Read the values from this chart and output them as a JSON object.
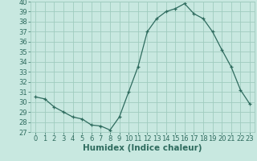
{
  "x": [
    0,
    1,
    2,
    3,
    4,
    5,
    6,
    7,
    8,
    9,
    10,
    11,
    12,
    13,
    14,
    15,
    16,
    17,
    18,
    19,
    20,
    21,
    22,
    23
  ],
  "y": [
    30.5,
    30.3,
    29.5,
    29.0,
    28.5,
    28.3,
    27.7,
    27.6,
    27.2,
    28.5,
    31.0,
    33.5,
    37.0,
    38.3,
    39.0,
    39.3,
    39.8,
    38.8,
    38.3,
    37.0,
    35.2,
    33.5,
    31.2,
    29.8
  ],
  "line_color": "#2e6b5e",
  "marker": "+",
  "bg_color": "#c8e8e0",
  "grid_color": "#a0ccbf",
  "xlabel": "Humidex (Indice chaleur)",
  "ylim": [
    27,
    40
  ],
  "xlim": [
    -0.5,
    23.5
  ],
  "yticks": [
    27,
    28,
    29,
    30,
    31,
    32,
    33,
    34,
    35,
    36,
    37,
    38,
    39,
    40
  ],
  "xticks": [
    0,
    1,
    2,
    3,
    4,
    5,
    6,
    7,
    8,
    9,
    10,
    11,
    12,
    13,
    14,
    15,
    16,
    17,
    18,
    19,
    20,
    21,
    22,
    23
  ],
  "tick_color": "#2e6b5e",
  "font_size": 6,
  "xlabel_fontsize": 7.5
}
